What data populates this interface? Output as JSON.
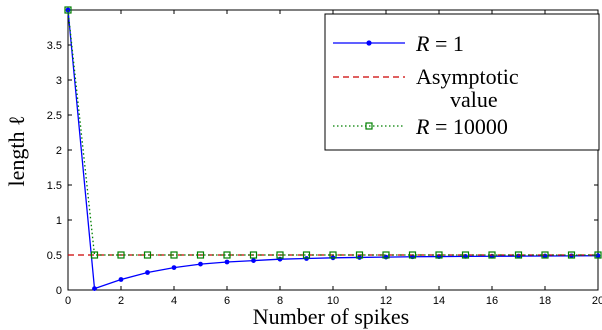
{
  "chart_data": {
    "type": "line",
    "xlabel": "Number of spikes",
    "ylabel": "length ℓ",
    "xlim": [
      0,
      20
    ],
    "ylim": [
      0,
      4
    ],
    "xticks": [
      0,
      2,
      4,
      6,
      8,
      10,
      12,
      14,
      16,
      18,
      20
    ],
    "yticks": [
      0,
      0.5,
      1,
      1.5,
      2,
      2.5,
      3,
      3.5
    ],
    "x": [
      0,
      1,
      2,
      3,
      4,
      5,
      6,
      7,
      8,
      9,
      10,
      11,
      12,
      13,
      14,
      15,
      16,
      17,
      18,
      19,
      20
    ],
    "grid": false,
    "legend_position": "top-right",
    "series": [
      {
        "name": "R = 1",
        "style": "solid-dot",
        "color": "#0000ff",
        "values": [
          4.0,
          0.02,
          0.15,
          0.25,
          0.32,
          0.37,
          0.4,
          0.42,
          0.44,
          0.45,
          0.46,
          0.465,
          0.47,
          0.475,
          0.478,
          0.48,
          0.482,
          0.484,
          0.486,
          0.488,
          0.49
        ]
      },
      {
        "name": "Asymptotic value",
        "legend_lines": [
          "Asymptotic",
          "value"
        ],
        "style": "dashed",
        "color": "#cc0000",
        "values": [
          0.5,
          0.5,
          0.5,
          0.5,
          0.5,
          0.5,
          0.5,
          0.5,
          0.5,
          0.5,
          0.5,
          0.5,
          0.5,
          0.5,
          0.5,
          0.5,
          0.5,
          0.5,
          0.5,
          0.5,
          0.5
        ]
      },
      {
        "name": "R = 10000",
        "style": "dotted-square",
        "color": "#008000",
        "values": [
          4.0,
          0.5,
          0.5,
          0.5,
          0.5,
          0.5,
          0.5,
          0.5,
          0.5,
          0.5,
          0.5,
          0.5,
          0.5,
          0.5,
          0.5,
          0.5,
          0.5,
          0.5,
          0.5,
          0.5,
          0.5
        ]
      }
    ]
  }
}
